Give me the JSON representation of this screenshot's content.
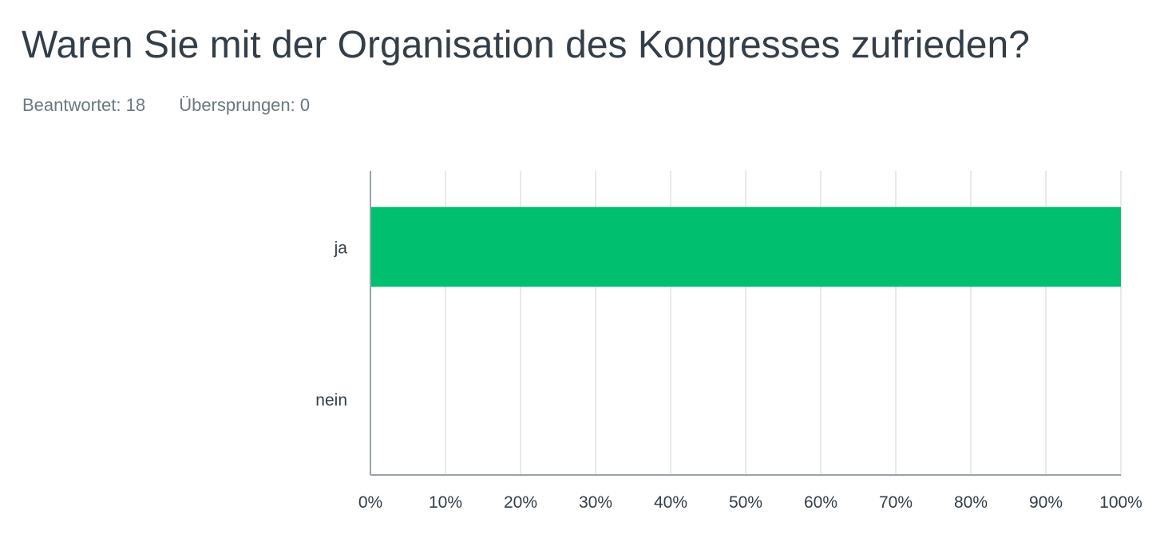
{
  "question": {
    "title": "Waren Sie mit der Organisation des Kongresses zufrieden?",
    "answered": "Beantwortet: 18",
    "skipped": "Übersprungen: 0"
  },
  "colors": {
    "bar": "#00bf6f",
    "gridline": "#e0e3e4",
    "axis": "#9aa3a8"
  },
  "chart_data": {
    "type": "bar",
    "orientation": "horizontal",
    "categories": [
      "ja",
      "nein"
    ],
    "values": [
      100,
      0
    ],
    "xlim": [
      0,
      100
    ],
    "x_ticks": [
      0,
      10,
      20,
      30,
      40,
      50,
      60,
      70,
      80,
      90,
      100
    ],
    "x_tick_labels": [
      "0%",
      "10%",
      "20%",
      "30%",
      "40%",
      "50%",
      "60%",
      "70%",
      "80%",
      "90%",
      "100%"
    ],
    "grid": true,
    "legend": "none"
  }
}
